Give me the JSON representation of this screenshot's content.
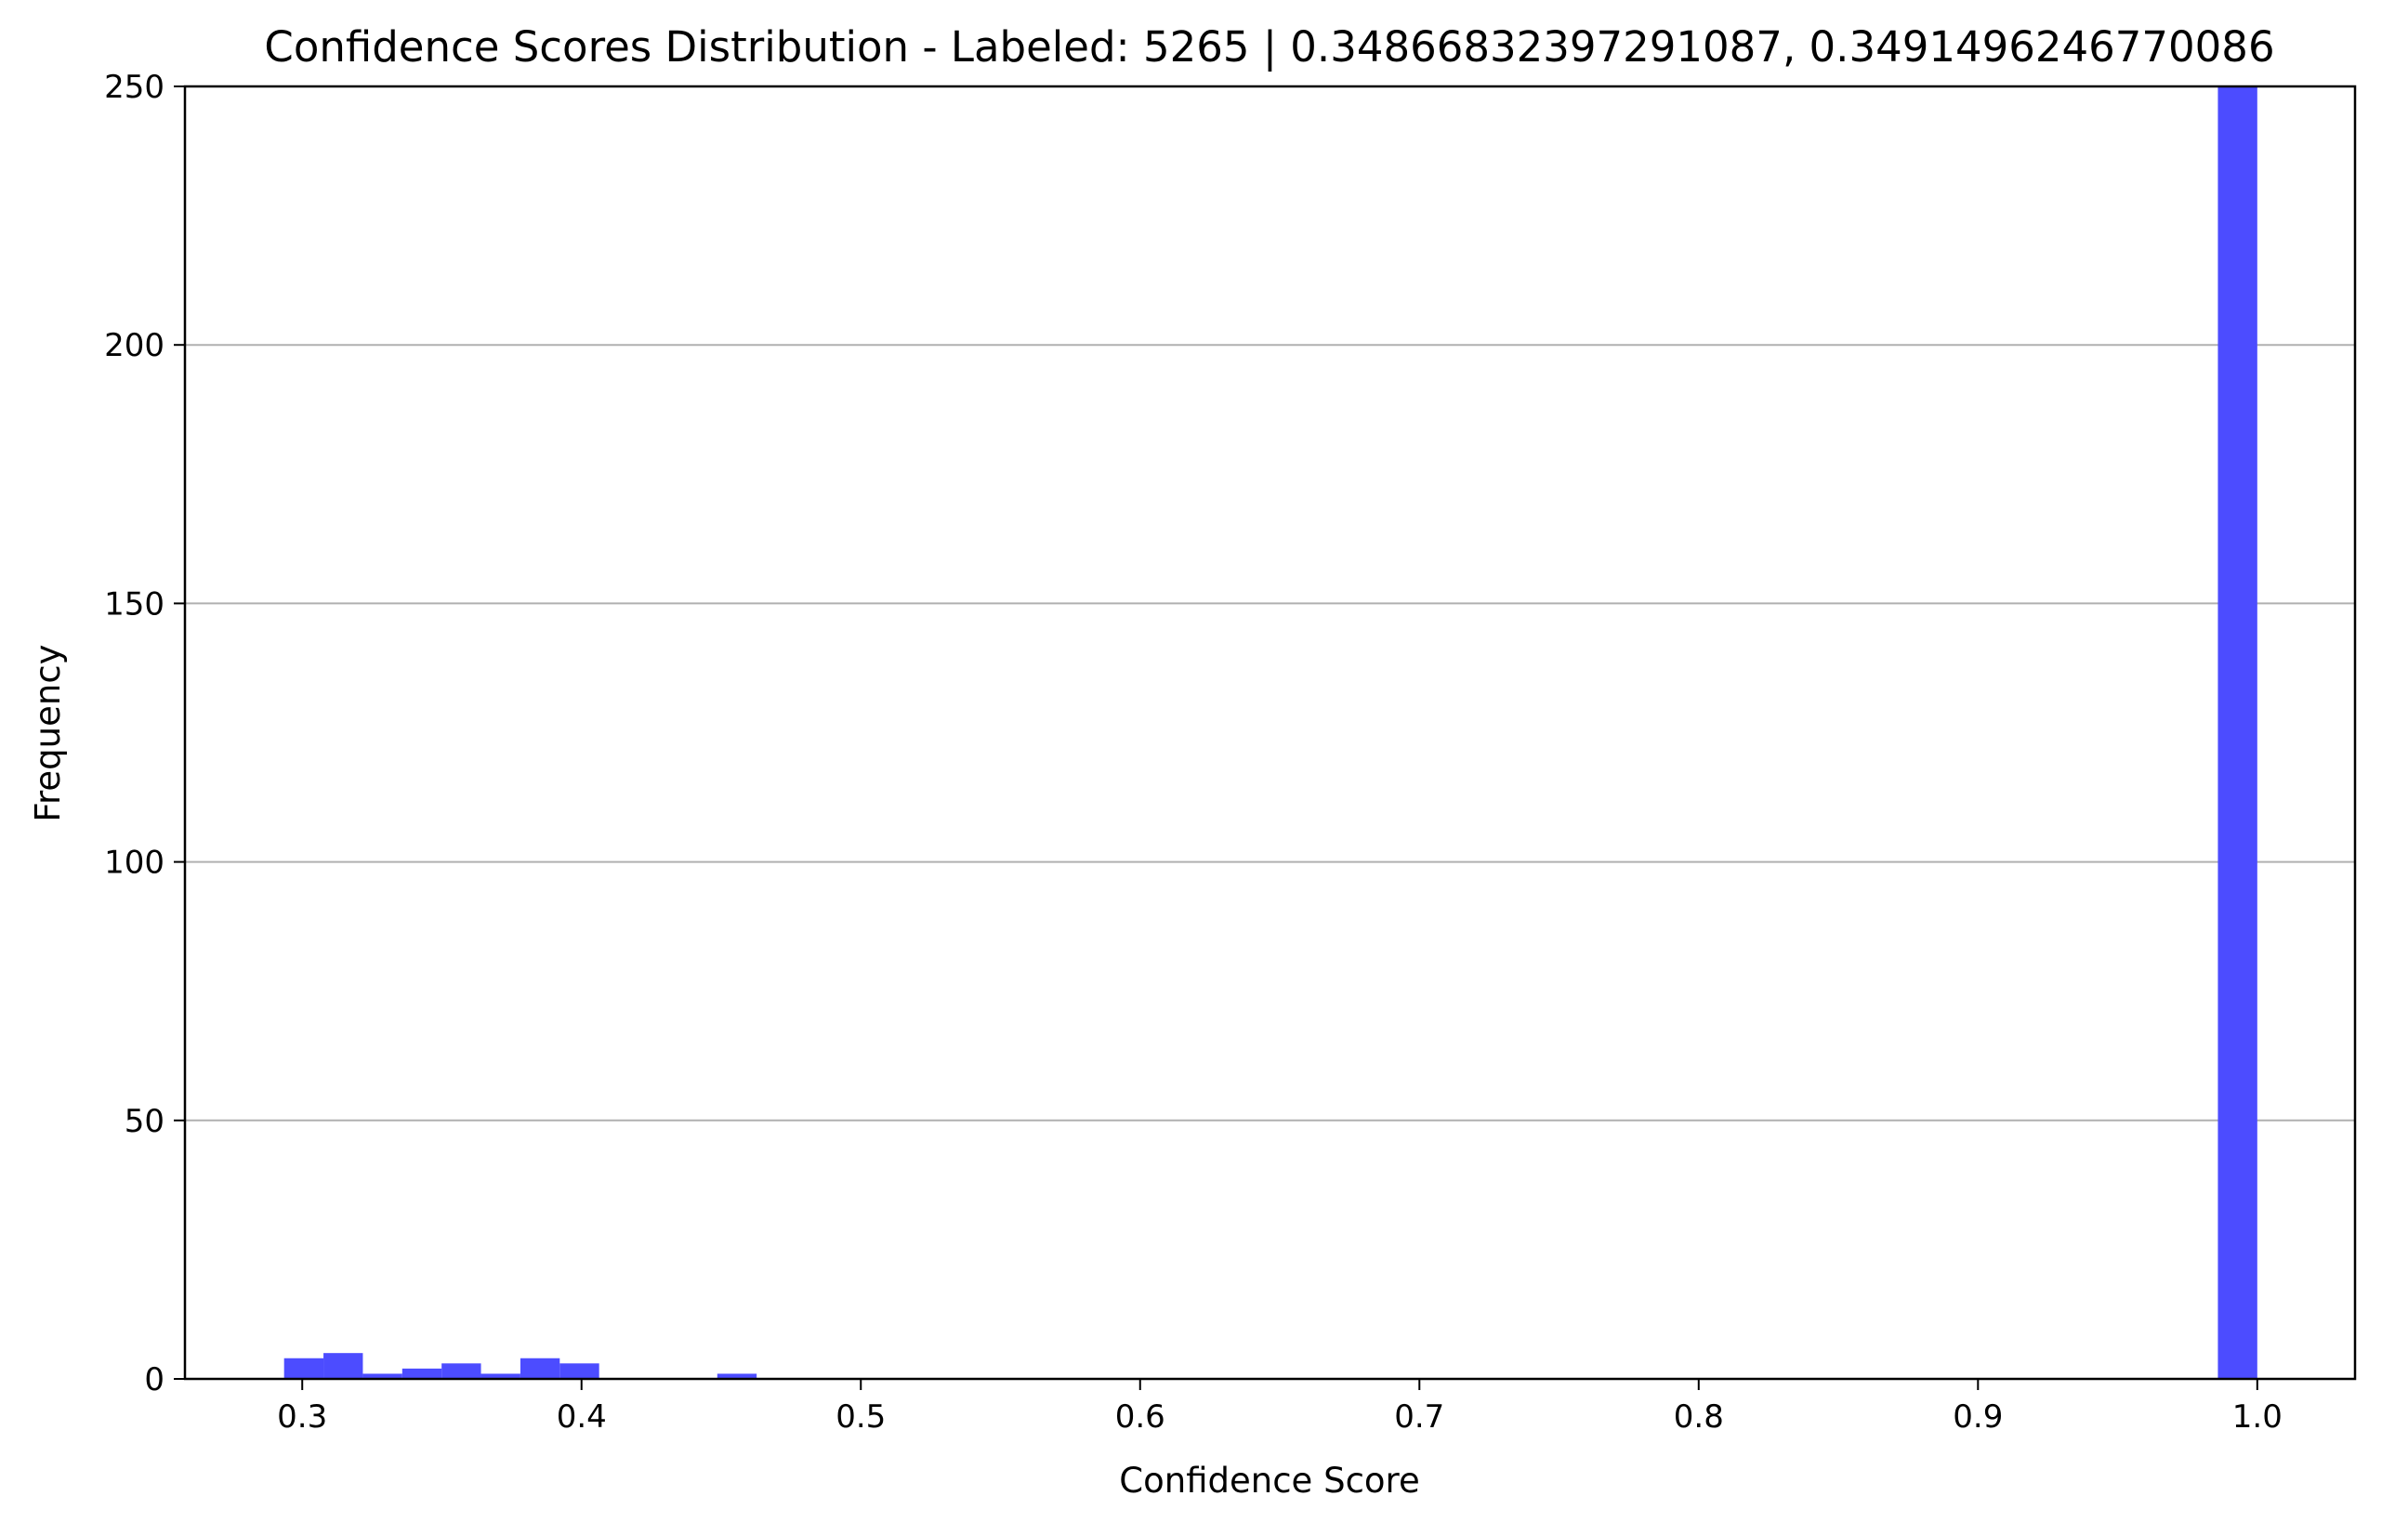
{
  "chart_data": {
    "type": "bar",
    "title": "Confidence Scores Distribution - Labeled: 5265 | 0.34866832397291087, 0.3491496246770086",
    "xlabel": "Confidence Score",
    "ylabel": "Frequency",
    "xlim": [
      0.258,
      1.035
    ],
    "ylim": [
      0,
      250
    ],
    "xticks": [
      {
        "value": 0.3,
        "label": "0.3"
      },
      {
        "value": 0.4,
        "label": "0.4"
      },
      {
        "value": 0.5,
        "label": "0.5"
      },
      {
        "value": 0.6,
        "label": "0.6"
      },
      {
        "value": 0.7,
        "label": "0.7"
      },
      {
        "value": 0.8,
        "label": "0.8"
      },
      {
        "value": 0.9,
        "label": "0.9"
      },
      {
        "value": 1.0,
        "label": "1.0"
      }
    ],
    "yticks": [
      {
        "value": 0,
        "label": "0"
      },
      {
        "value": 50,
        "label": "50"
      },
      {
        "value": 100,
        "label": "100"
      },
      {
        "value": 150,
        "label": "150"
      },
      {
        "value": 200,
        "label": "200"
      },
      {
        "value": 250,
        "label": "250"
      }
    ],
    "grid": {
      "y": true,
      "x": false
    },
    "bar_color": "#4c4cff",
    "bins": [
      {
        "start": 0.2935,
        "end": 0.3076,
        "count": 4
      },
      {
        "start": 0.3076,
        "end": 0.3217,
        "count": 5
      },
      {
        "start": 0.3217,
        "end": 0.3358,
        "count": 1
      },
      {
        "start": 0.3358,
        "end": 0.3499,
        "count": 2
      },
      {
        "start": 0.3499,
        "end": 0.364,
        "count": 3
      },
      {
        "start": 0.364,
        "end": 0.3781,
        "count": 1
      },
      {
        "start": 0.3781,
        "end": 0.3922,
        "count": 4
      },
      {
        "start": 0.3922,
        "end": 0.4063,
        "count": 3
      },
      {
        "start": 0.4486,
        "end": 0.4627,
        "count": 1
      },
      {
        "start": 0.9859,
        "end": 1.0,
        "count": 250
      }
    ]
  }
}
